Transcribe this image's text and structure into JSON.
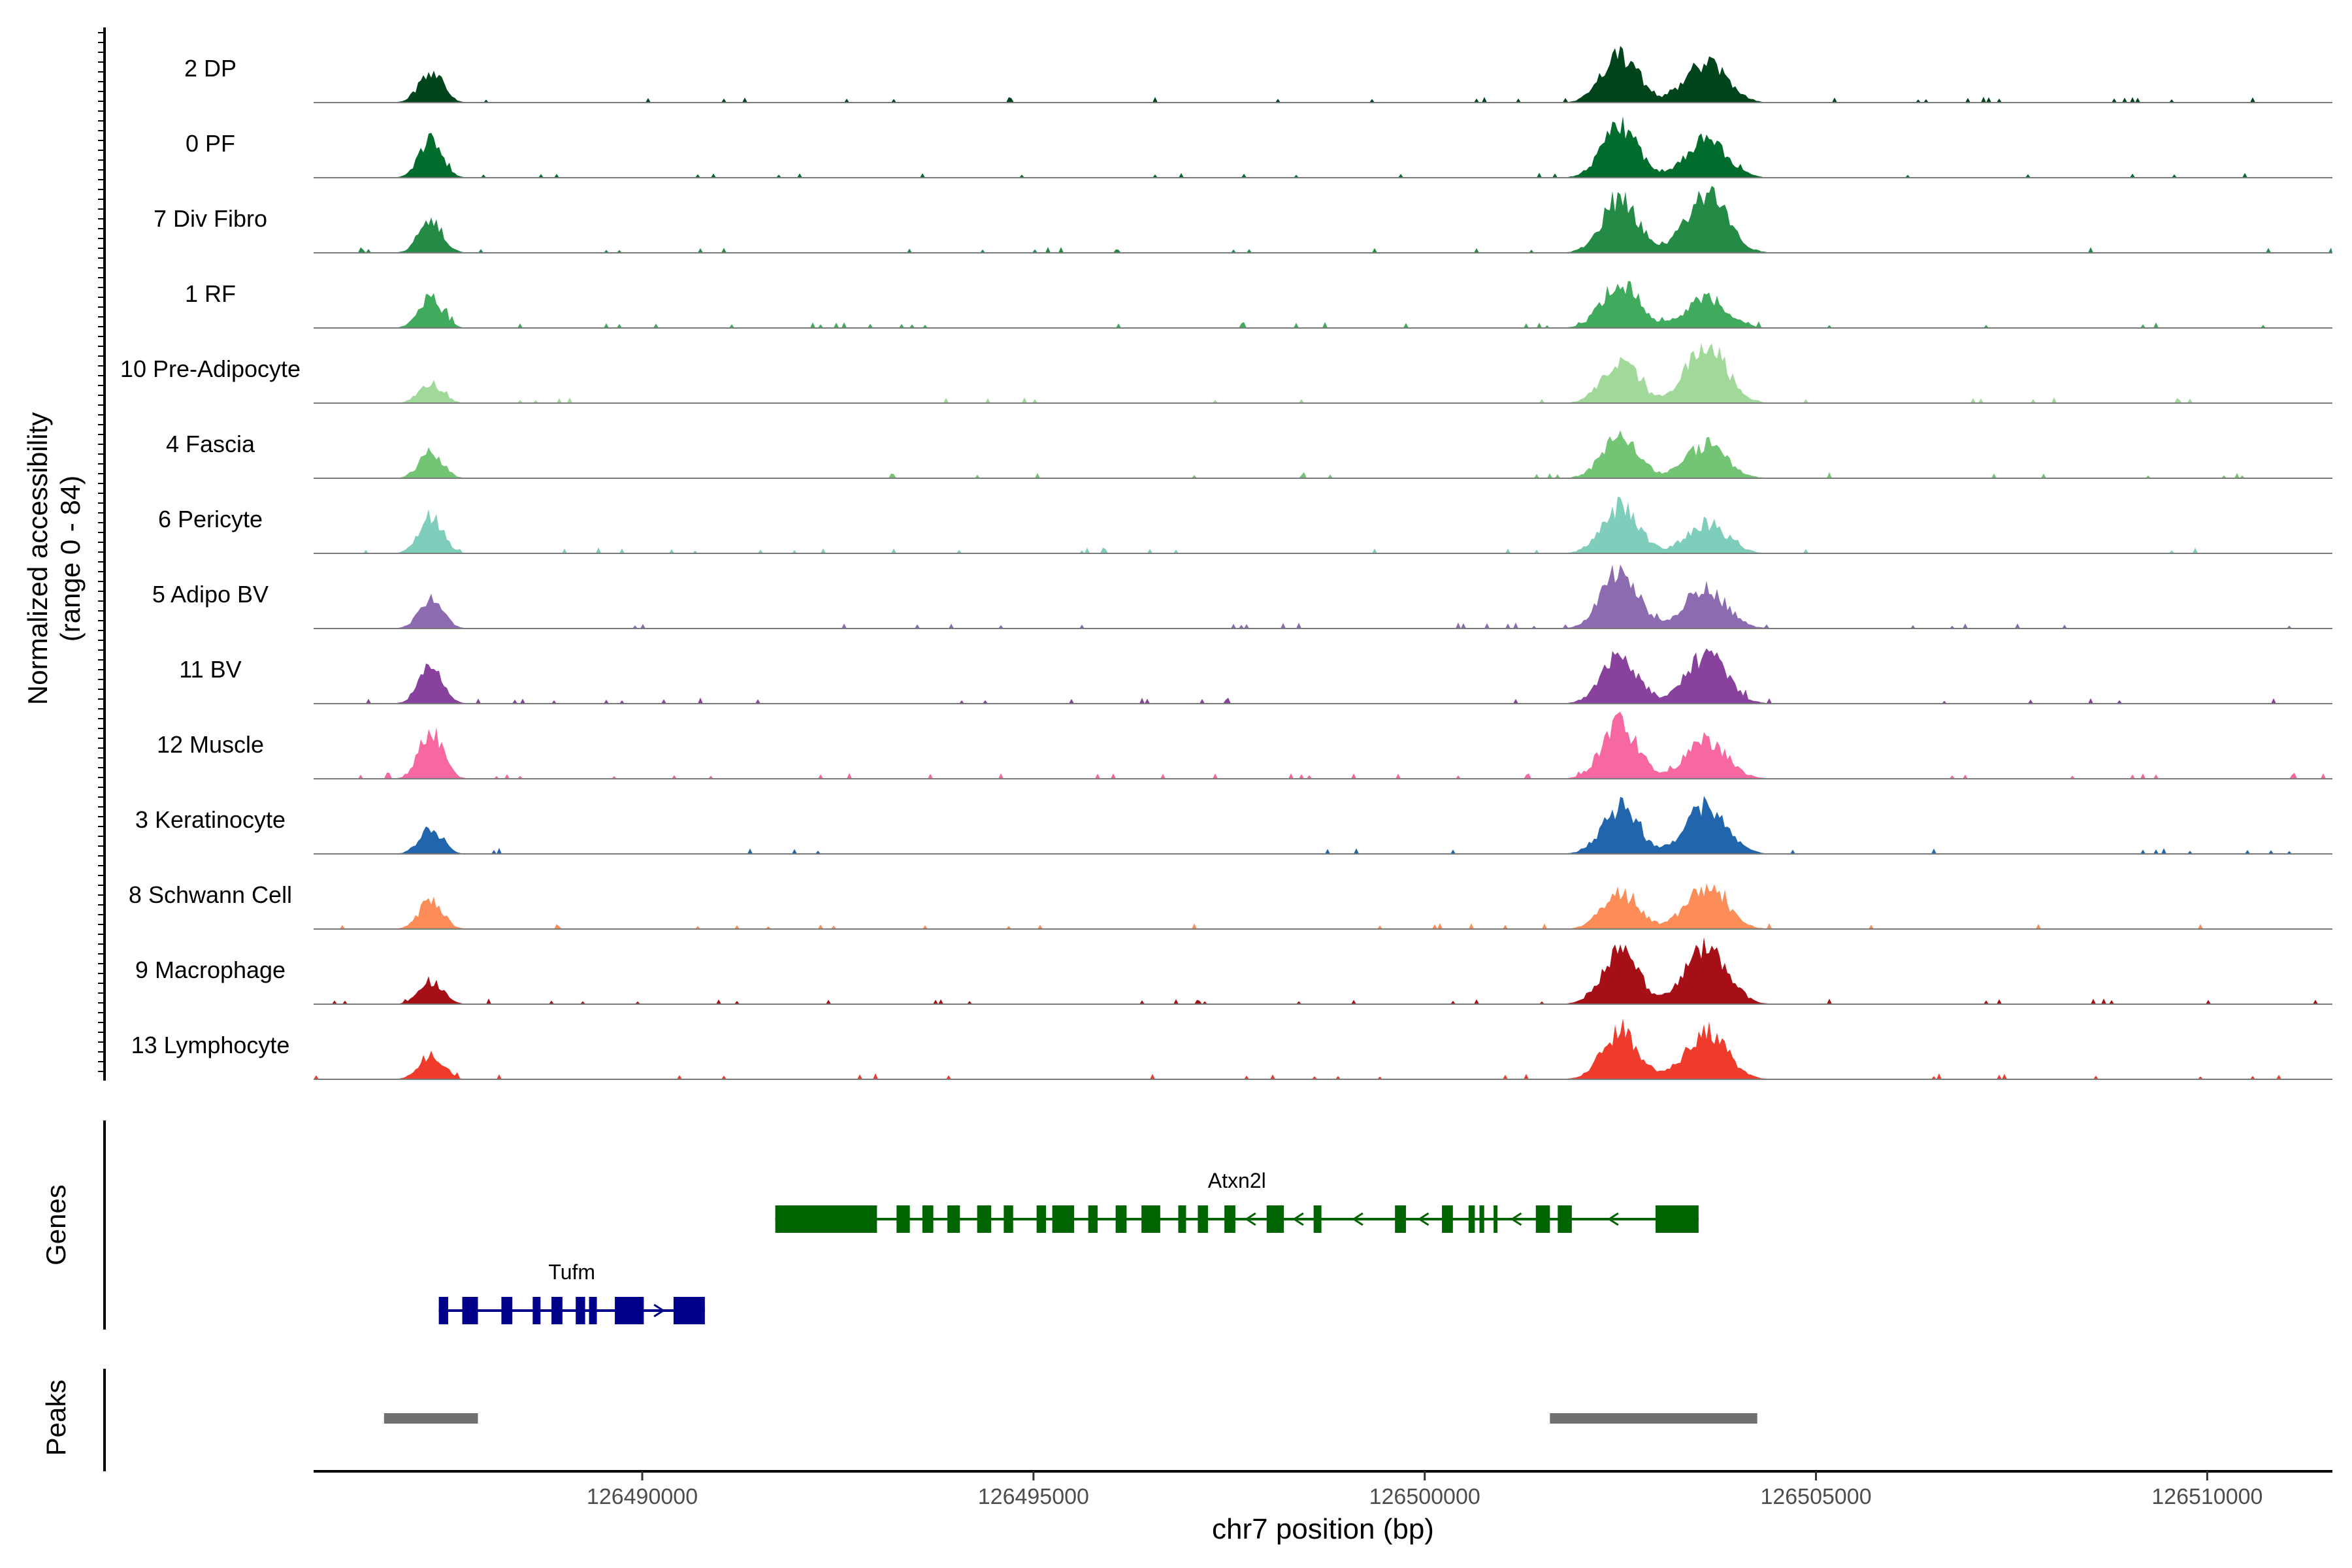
{
  "chart_data": {
    "type": "area",
    "title": "",
    "coverage": {
      "ylabel_line1": "Normalized accessibility",
      "ylabel_line2": "(range 0 - 84)",
      "yrange": [
        0,
        84
      ],
      "shape": {
        "peaks": [
          {
            "center": 126487300,
            "sd": 150,
            "scale": 0.9
          },
          {
            "center": 126502500,
            "sd": 230,
            "scale": 1.0
          },
          {
            "center": 126503600,
            "sd": 260,
            "scale": 1.0
          }
        ]
      },
      "tracks": [
        {
          "label": "2 DP",
          "color": "#00441b",
          "peaks": [
            0.52,
            0.72,
            0.6
          ]
        },
        {
          "label": "0 PF",
          "color": "#006d2c",
          "peaks": [
            0.62,
            0.78,
            0.55
          ]
        },
        {
          "label": "7 Div Fibro",
          "color": "#238b45",
          "peaks": [
            0.55,
            0.82,
            0.9
          ]
        },
        {
          "label": "1 RF",
          "color": "#41ab5d",
          "peaks": [
            0.5,
            0.68,
            0.45
          ]
        },
        {
          "label": "10 Pre-Adipocyte",
          "color": "#a1d99b",
          "peaks": [
            0.32,
            0.6,
            0.88
          ]
        },
        {
          "label": "4 Fascia",
          "color": "#74c476",
          "peaks": [
            0.42,
            0.62,
            0.5
          ]
        },
        {
          "label": "6 Pericyte",
          "color": "#7fcdbb",
          "peaks": [
            0.6,
            0.7,
            0.45
          ]
        },
        {
          "label": "5 Adipo BV",
          "color": "#8c6bb1",
          "peaks": [
            0.5,
            0.88,
            0.58
          ]
        },
        {
          "label": "11 BV",
          "color": "#88419d",
          "peaks": [
            0.62,
            0.7,
            0.72
          ]
        },
        {
          "label": "12 Muscle",
          "color": "#f768a1",
          "peaks": [
            0.78,
            0.82,
            0.58
          ]
        },
        {
          "label": "3 Keratinocyte",
          "color": "#2166ac",
          "peaks": [
            0.4,
            0.68,
            0.7
          ]
        },
        {
          "label": "8 Schwann Cell",
          "color": "#fc8d59",
          "peaks": [
            0.48,
            0.52,
            0.62
          ]
        },
        {
          "label": "9 Macrophage",
          "color": "#a50f15",
          "peaks": [
            0.38,
            0.8,
            0.9
          ]
        },
        {
          "label": "13 Lymphocyte",
          "color": "#ef3b2c",
          "peaks": [
            0.42,
            0.7,
            0.7
          ]
        }
      ]
    },
    "genes": {
      "ylabel": "Genes",
      "items": [
        {
          "name": "Atxn2l",
          "color": "#006400",
          "strand": "-",
          "start": 126491700,
          "end": 126503500,
          "exons": [
            [
              126491700,
              126493000
            ],
            [
              126493250,
              126493420
            ],
            [
              126493580,
              126493720
            ],
            [
              126493900,
              126494060
            ],
            [
              126494280,
              126494460
            ],
            [
              126494620,
              126494740
            ],
            [
              126495040,
              126495160
            ],
            [
              126495240,
              126495520
            ],
            [
              126495700,
              126495820
            ],
            [
              126496050,
              126496190
            ],
            [
              126496380,
              126496620
            ],
            [
              126496850,
              126496950
            ],
            [
              126497100,
              126497230
            ],
            [
              126497440,
              126497580
            ],
            [
              126497980,
              126498200
            ],
            [
              126498580,
              126498680
            ],
            [
              126499620,
              126499760
            ],
            [
              126500220,
              126500360
            ],
            [
              126500560,
              126500640
            ],
            [
              126500700,
              126500760
            ],
            [
              126500880,
              126500930
            ],
            [
              126501420,
              126501600
            ],
            [
              126501700,
              126501880
            ],
            [
              126502950,
              126503500
            ]
          ]
        },
        {
          "name": "Tufm",
          "color": "#00008b",
          "strand": "+",
          "start": 126487400,
          "end": 126490800,
          "exons": [
            [
              126487400,
              126487520
            ],
            [
              126487700,
              126487900
            ],
            [
              126488200,
              126488340
            ],
            [
              126488600,
              126488700
            ],
            [
              126488840,
              126488980
            ],
            [
              126489150,
              126489270
            ],
            [
              126489320,
              126489420
            ],
            [
              126489650,
              126490020
            ],
            [
              126490400,
              126490800
            ]
          ]
        }
      ]
    },
    "peaks": {
      "ylabel": "Peaks",
      "color": "#707070",
      "ranges": [
        [
          126486700,
          126487900
        ],
        [
          126501600,
          126504250
        ]
      ]
    },
    "x": {
      "label": "chr7 position (bp)",
      "range": [
        126485800,
        126511600
      ],
      "ticks": [
        126490000,
        126495000,
        126500000,
        126505000,
        126510000
      ],
      "tick_labels": [
        "126490000",
        "126495000",
        "126500000",
        "126505000",
        "126510000"
      ]
    }
  }
}
